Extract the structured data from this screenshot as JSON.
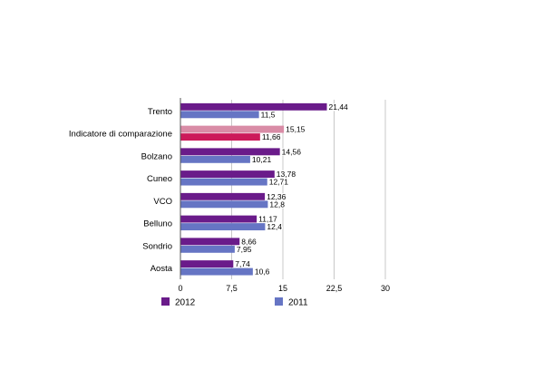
{
  "chart_data": {
    "type": "bar",
    "orientation": "horizontal",
    "title": "",
    "xlabel": "",
    "ylabel": "",
    "categories": [
      "Trento",
      "Indicatore di comparazione",
      "Bolzano",
      "Cuneo",
      "VCO",
      "Belluno",
      "Sondrio",
      "Aosta"
    ],
    "series": [
      {
        "name": "2012",
        "color": "#6a1b8a",
        "values": [
          21.44,
          15.15,
          14.56,
          13.78,
          12.36,
          11.17,
          8.66,
          7.74
        ],
        "labels": [
          "21,44",
          "15,15",
          "14,56",
          "13,78",
          "12,36",
          "11,17",
          "8,66",
          "7,74"
        ]
      },
      {
        "name": "2011",
        "color": "#6675c4",
        "values": [
          11.5,
          11.66,
          10.21,
          12.71,
          12.8,
          12.4,
          7.95,
          10.6
        ],
        "labels": [
          "11,5",
          "11,66",
          "10,21",
          "12,71",
          "12,8",
          "12,4",
          "7,95",
          "10,6"
        ]
      }
    ],
    "highlight": {
      "category": "Indicatore di comparazione",
      "colors": {
        "2012": "#d98ca6",
        "2011": "#cc1a5a"
      }
    },
    "xlim": [
      0,
      30
    ],
    "xticks": [
      0,
      7.5,
      15,
      22.5,
      30
    ],
    "xtick_labels": [
      "0",
      "7,5",
      "15",
      "22,5",
      "30"
    ],
    "grid": "vertical",
    "legend": {
      "position": "bottom",
      "items": [
        "2012",
        "2011"
      ]
    }
  }
}
